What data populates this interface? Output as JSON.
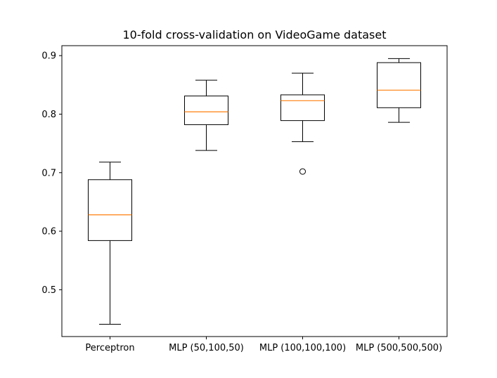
{
  "chart_data": {
    "type": "boxplot",
    "title": "10-fold cross-validation on VideoGame dataset",
    "xlabel": "",
    "ylabel": "",
    "categories": [
      "Perceptron",
      "MLP (50,100,50)",
      "MLP (100,100,100)",
      "MLP (500,500,500)"
    ],
    "boxes": [
      {
        "category": "Perceptron",
        "whisker_low": 0.441,
        "q1": 0.584,
        "median": 0.628,
        "q3": 0.688,
        "whisker_high": 0.718,
        "fliers": []
      },
      {
        "category": "MLP (50,100,50)",
        "whisker_low": 0.738,
        "q1": 0.782,
        "median": 0.804,
        "q3": 0.831,
        "whisker_high": 0.858,
        "fliers": []
      },
      {
        "category": "MLP (100,100,100)",
        "whisker_low": 0.753,
        "q1": 0.789,
        "median": 0.823,
        "q3": 0.833,
        "whisker_high": 0.87,
        "fliers": [
          0.702
        ]
      },
      {
        "category": "MLP (500,500,500)",
        "whisker_low": 0.786,
        "q1": 0.811,
        "median": 0.841,
        "q3": 0.888,
        "whisker_high": 0.895,
        "fliers": []
      }
    ],
    "ylim": [
      0.42,
      0.917
    ],
    "yticks": [
      "0.5",
      "0.6",
      "0.7",
      "0.8",
      "0.9"
    ],
    "grid": false,
    "legend": "none",
    "colors": {
      "box": "#000000",
      "median": "#ff7f0e",
      "background": "#ffffff"
    }
  }
}
